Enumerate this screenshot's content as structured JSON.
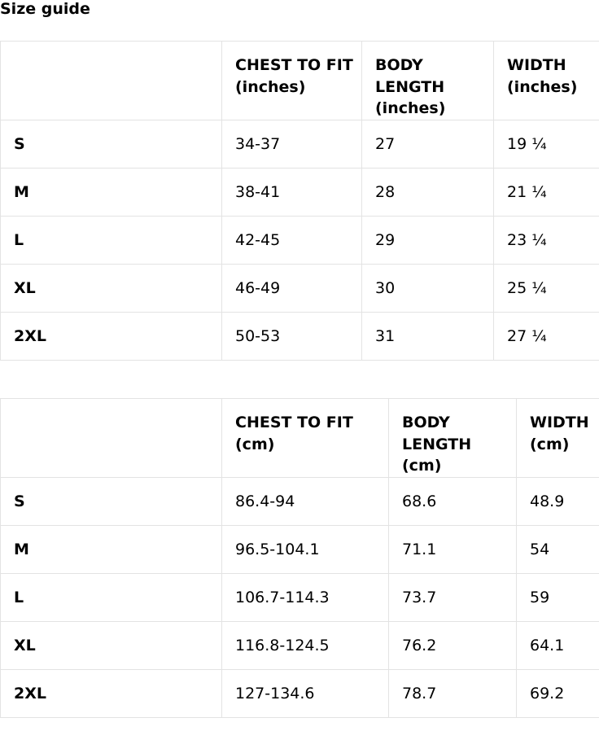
{
  "title": "Size guide",
  "tables": [
    {
      "headers": [
        "",
        "CHEST TO FIT (inches)",
        "BODY LENGTH (inches)",
        "WIDTH (inches)"
      ],
      "rows": [
        [
          "S",
          "34-37",
          "27",
          "19 ¼"
        ],
        [
          "M",
          "38-41",
          "28",
          "21 ¼"
        ],
        [
          "L",
          "42-45",
          "29",
          "23 ¼"
        ],
        [
          "XL",
          "46-49",
          "30",
          "25 ¼"
        ],
        [
          "2XL",
          "50-53",
          "31",
          "27 ¼"
        ]
      ]
    },
    {
      "headers": [
        "",
        "CHEST TO FIT (cm)",
        "BODY LENGTH (cm)",
        "WIDTH (cm)"
      ],
      "rows": [
        [
          "S",
          "86.4-94",
          "68.6",
          "48.9"
        ],
        [
          "M",
          "96.5-104.1",
          "71.1",
          "54"
        ],
        [
          "L",
          "106.7-114.3",
          "73.7",
          "59"
        ],
        [
          "XL",
          "116.8-124.5",
          "76.2",
          "64.1"
        ],
        [
          "2XL",
          "127-134.6",
          "78.7",
          "69.2"
        ]
      ]
    }
  ]
}
